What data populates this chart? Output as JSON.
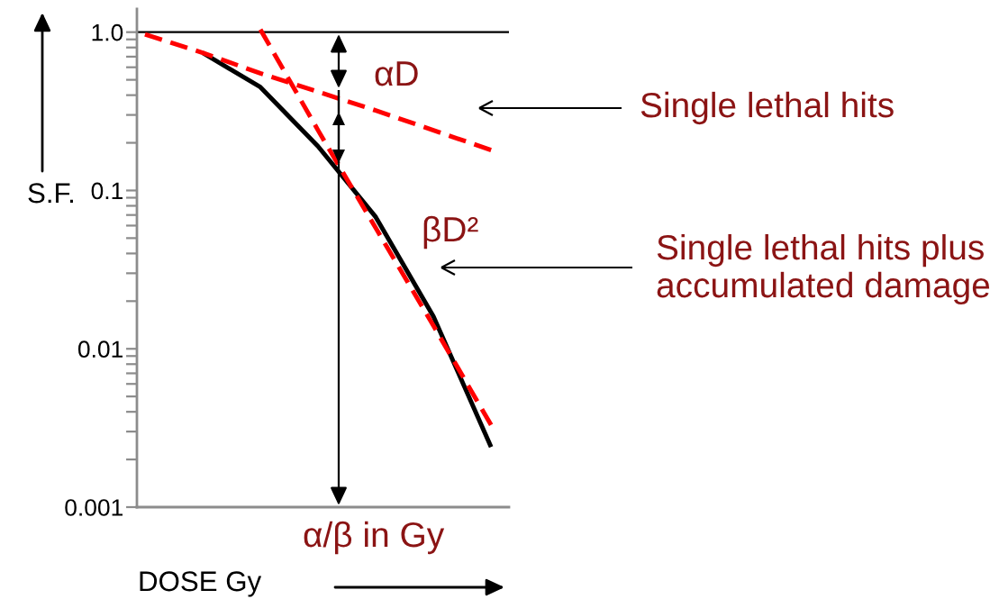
{
  "chart_data": {
    "type": "line",
    "xlabel": "DOSE Gy",
    "ylabel": "S.F.",
    "categories": [
      null,
      null,
      null,
      null,
      null,
      null,
      null
    ],
    "series": [
      {
        "color": "#000000",
        "line_style": "solid",
        "values": [
          null,
          0.74,
          0.45,
          0.19,
          0.068,
          0.016,
          0.0024
        ]
      },
      {
        "color": "#ff0000",
        "line_style": "dashed",
        "values": [
          0.97,
          0.74,
          0.55,
          0.42,
          0.32,
          0.24,
          0.18
        ]
      },
      {
        "color": "#ff0000",
        "line_style": "dashed",
        "values": [
          null,
          null,
          1.04,
          0.24,
          0.058,
          0.014,
          0.0033
        ]
      }
    ],
    "log": true,
    "ylim": [
      0.001,
      1.4
    ],
    "yticks": [
      {
        "value": 1,
        "label": "1.0"
      },
      0.1,
      0.01,
      0.001
    ],
    "ref_lines": [
      {
        "axis": "y",
        "value": 1,
        "color": "#000000"
      }
    ],
    "annotations": [
      "αD",
      "Single lethal hits",
      "βD²",
      "Single lethal hits plus\naccumulated damage",
      "α/β in Gy"
    ],
    "tick_labels": "y"
  }
}
